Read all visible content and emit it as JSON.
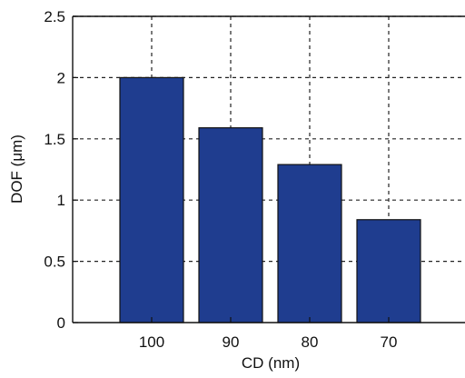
{
  "chart_data": {
    "type": "bar",
    "categories": [
      "100",
      "90",
      "80",
      "70"
    ],
    "values": [
      2.0,
      1.59,
      1.29,
      0.84
    ],
    "xlabel": "CD (nm)",
    "ylabel": "DOF (μm)",
    "ylim": [
      0,
      2.5
    ],
    "yticks": [
      0,
      0.5,
      1,
      1.5,
      2,
      2.5
    ],
    "grid": true,
    "bar_color": "#1f3d8f"
  }
}
